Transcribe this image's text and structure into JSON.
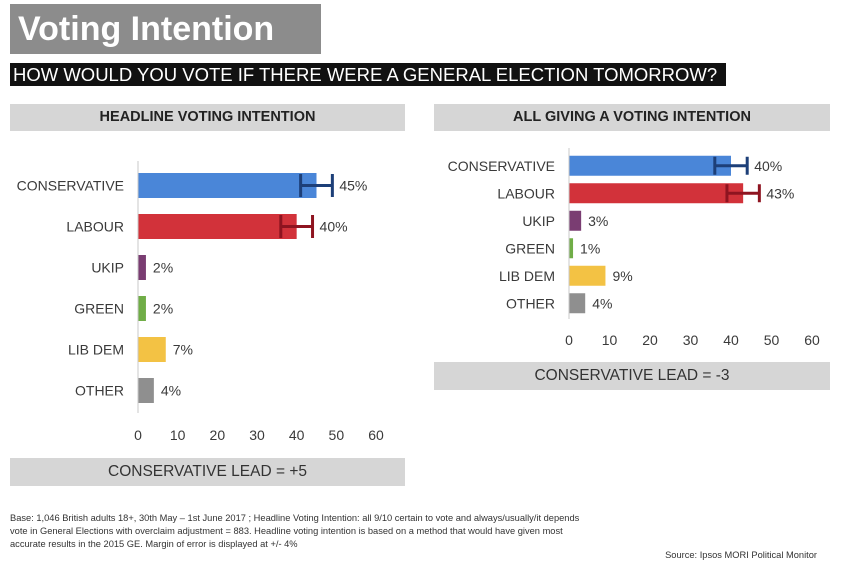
{
  "title": "Voting Intention",
  "question": "HOW WOULD YOU VOTE IF THERE WERE A GENERAL ELECTION TOMORROW?",
  "colors": {
    "conservative": "#4a86d8",
    "labour": "#d2323a",
    "ukip": "#7a3d72",
    "green": "#70ad47",
    "lib_dem": "#f3c244",
    "other": "#8f8f8f",
    "error_bar_conservative": "#1d3f78",
    "error_bar_labour": "#8e1420"
  },
  "panels": [
    {
      "header": "HEADLINE VOTING INTENTION",
      "lead": "CONSERVATIVE LEAD = +5"
    },
    {
      "header": "ALL GIVING A VOTING INTENTION",
      "lead": "CONSERVATIVE LEAD = -3"
    }
  ],
  "chart_data": [
    {
      "type": "bar",
      "orientation": "horizontal",
      "title": "HEADLINE VOTING INTENTION",
      "categories": [
        "CONSERVATIVE",
        "LABOUR",
        "UKIP",
        "GREEN",
        "LIB DEM",
        "OTHER"
      ],
      "values": [
        45,
        40,
        2,
        2,
        7,
        4
      ],
      "value_labels": [
        "45%",
        "40%",
        "2%",
        "2%",
        "7%",
        "4%"
      ],
      "bar_colors": [
        "#4a86d8",
        "#d2323a",
        "#7a3d72",
        "#70ad47",
        "#f3c244",
        "#8f8f8f"
      ],
      "error_margin": [
        4,
        4,
        null,
        null,
        null,
        null
      ],
      "xlim": [
        0,
        60
      ],
      "xticks": [
        0,
        10,
        20,
        30,
        40,
        50,
        60
      ],
      "grid": false,
      "legend": "none"
    },
    {
      "type": "bar",
      "orientation": "horizontal",
      "title": "ALL GIVING A VOTING INTENTION",
      "categories": [
        "CONSERVATIVE",
        "LABOUR",
        "UKIP",
        "GREEN",
        "LIB DEM",
        "OTHER"
      ],
      "values": [
        40,
        43,
        3,
        1,
        9,
        4
      ],
      "value_labels": [
        "40%",
        "43%",
        "3%",
        "1%",
        "9%",
        "4%"
      ],
      "bar_colors": [
        "#4a86d8",
        "#d2323a",
        "#7a3d72",
        "#70ad47",
        "#f3c244",
        "#8f8f8f"
      ],
      "error_margin": [
        4,
        4,
        null,
        null,
        null,
        null
      ],
      "xlim": [
        0,
        60
      ],
      "xticks": [
        0,
        10,
        20,
        30,
        40,
        50,
        60
      ],
      "grid": false,
      "legend": "none"
    }
  ],
  "footnote": {
    "line1": "Base: 1,046 British adults 18+, 30th May – 1st June 2017 ; Headline Voting Intention: all 9/10 certain to vote and always/usually/it depends",
    "line2": "vote in General Elections with overclaim adjustment = 883. Headline voting intention is based on a method that would have given most",
    "line3": "accurate results in the 2015 GE. Margin of error is displayed at +/- 4%"
  },
  "source": "Source: Ipsos MORI Political Monitor"
}
